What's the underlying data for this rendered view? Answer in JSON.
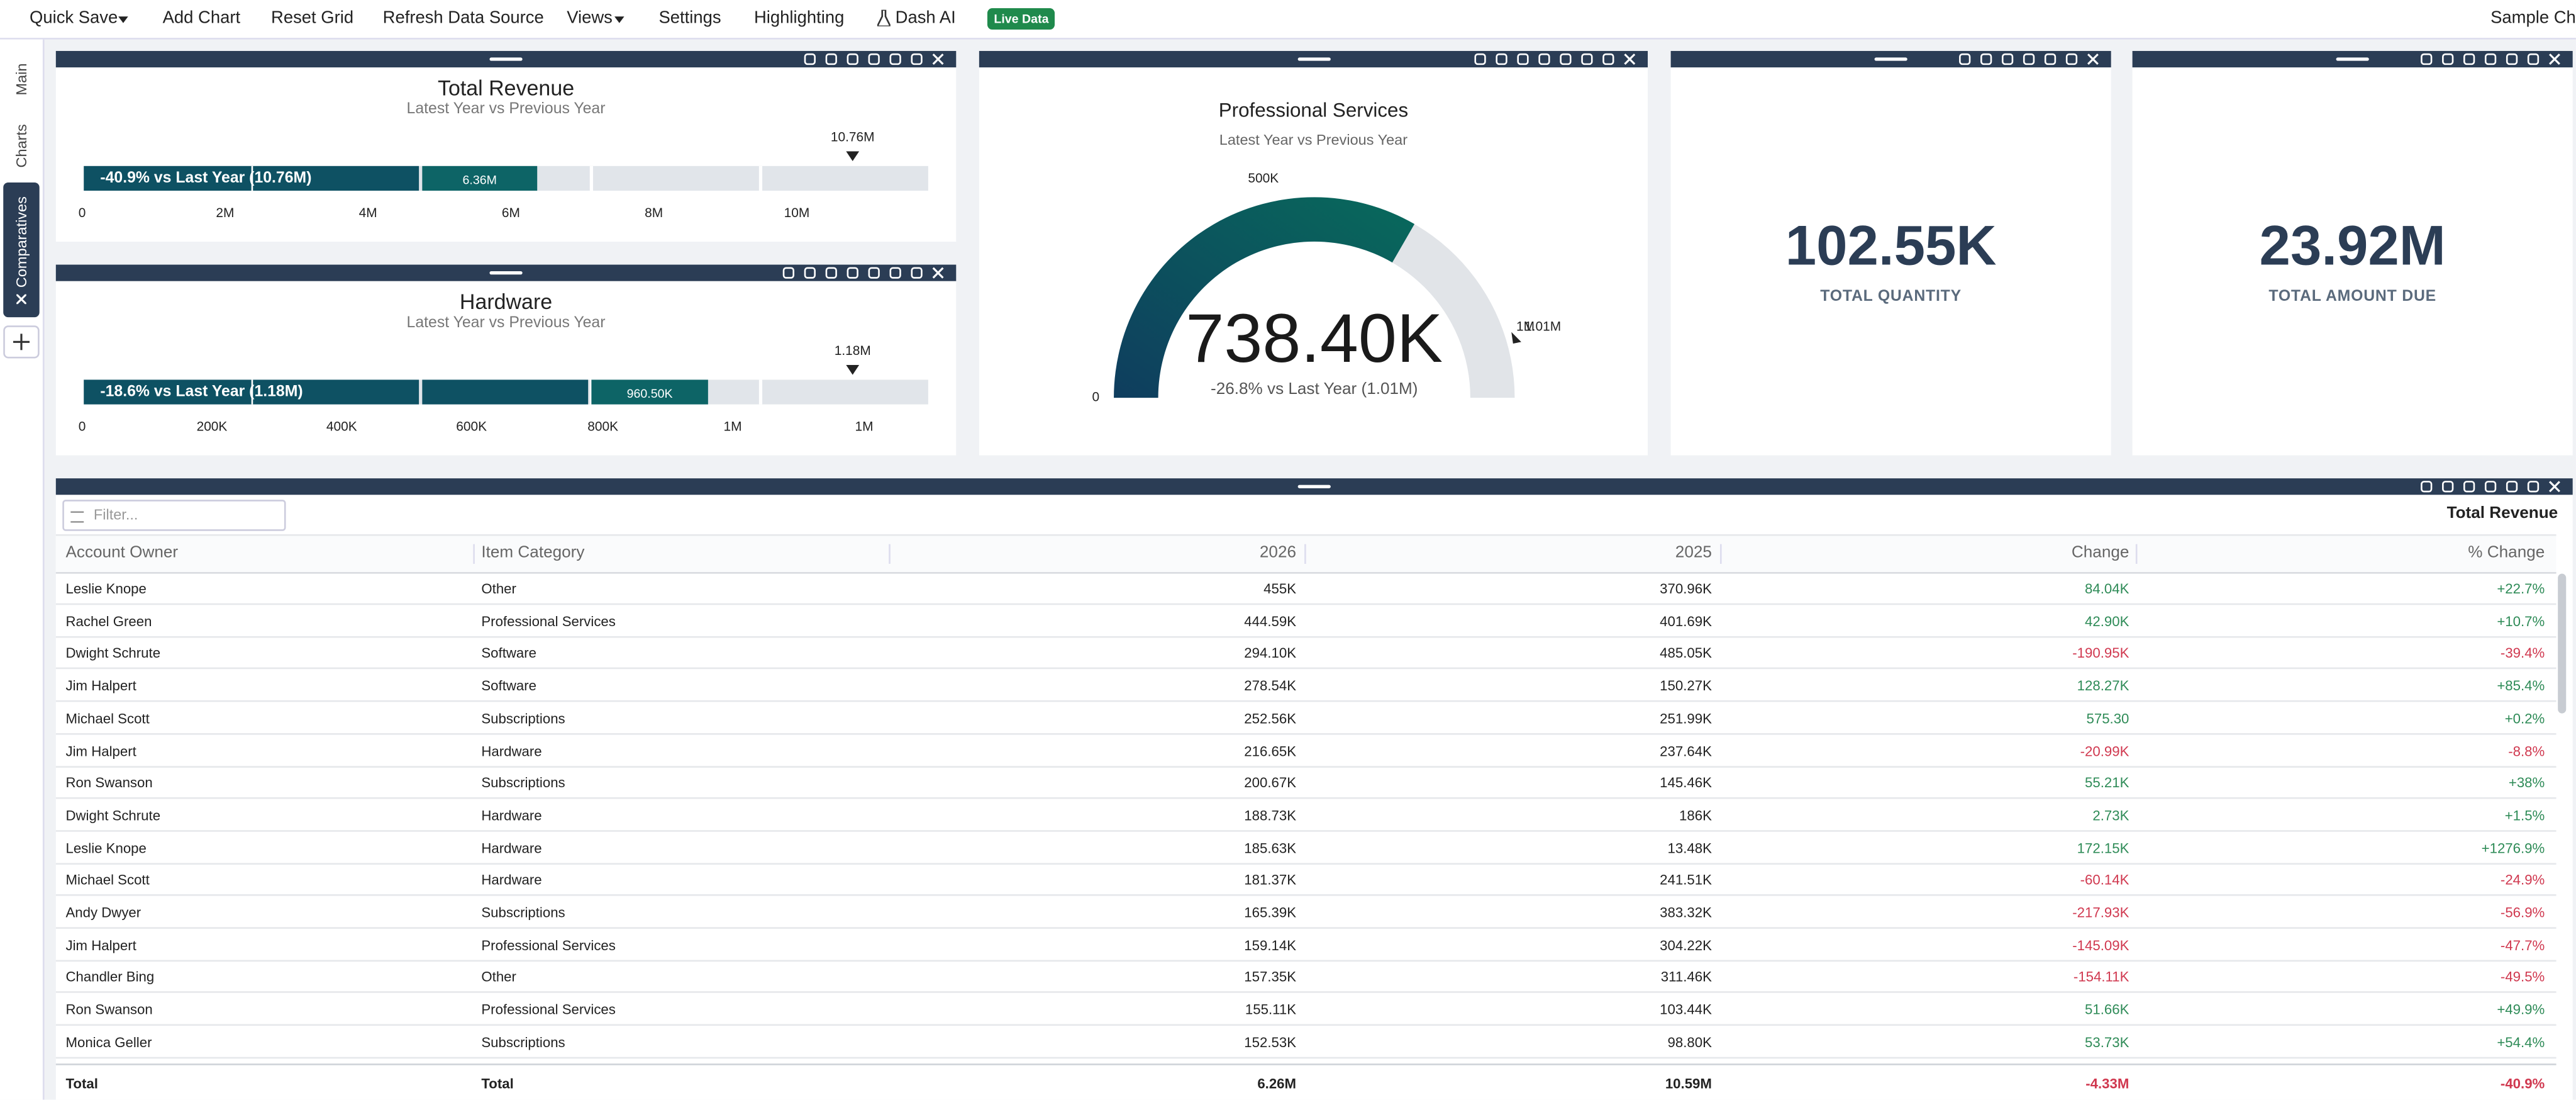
{
  "menu": {
    "items": [
      "Quick Save",
      "Add Chart",
      "Reset Grid",
      "Refresh Data Source",
      "Views",
      "Settings",
      "Highlighting",
      "Dash AI"
    ],
    "badge": "Live Data",
    "right": "Sample Cha"
  },
  "sidebar": {
    "tabs": [
      "Main",
      "Charts",
      "Comparatives"
    ]
  },
  "bullets": [
    {
      "title": "Total Revenue",
      "subtitle": "Latest Year vs Previous Year",
      "bar_label": "-40.9% vs Last Year (10.76M)",
      "segment_label": "6.36M",
      "marker_label": "10.76M",
      "ticks": [
        "0",
        "2M",
        "4M",
        "6M",
        "8M",
        "10M"
      ]
    },
    {
      "title": "Hardware",
      "subtitle": "Latest Year vs Previous Year",
      "bar_label": "-18.6% vs Last Year (1.18M)",
      "segment_label": "960.50K",
      "marker_label": "1.18M",
      "ticks": [
        "0",
        "200K",
        "400K",
        "600K",
        "800K",
        "1M",
        "1M"
      ]
    }
  ],
  "gauge": {
    "title": "Professional Services",
    "subtitle": "Latest Year vs Previous Year",
    "mid_label": "500K",
    "min_label": "0",
    "max_label": "1M",
    "marker_label": "1.01M",
    "value": "738.40K",
    "comparison": "-26.8% vs Last Year (1.01M)"
  },
  "kpis": [
    {
      "value": "102.55K",
      "label": "TOTAL QUANTITY"
    },
    {
      "value": "23.92M",
      "label": "TOTAL AMOUNT DUE"
    }
  ],
  "table": {
    "filter": "Filter...",
    "title": "Total Revenue",
    "columns": [
      "Account Owner",
      "Item Category",
      "2026",
      "2025",
      "Change",
      "% Change"
    ],
    "rows": [
      [
        "Leslie Knope",
        "Other",
        "455K",
        "370.96K",
        "84.04K",
        "+22.7%"
      ],
      [
        "Rachel Green",
        "Professional Services",
        "444.59K",
        "401.69K",
        "42.90K",
        "+10.7%"
      ],
      [
        "Dwight Schrute",
        "Software",
        "294.10K",
        "485.05K",
        "-190.95K",
        "-39.4%"
      ],
      [
        "Jim Halpert",
        "Software",
        "278.54K",
        "150.27K",
        "128.27K",
        "+85.4%"
      ],
      [
        "Michael Scott",
        "Subscriptions",
        "252.56K",
        "251.99K",
        "575.30",
        "+0.2%"
      ],
      [
        "Jim Halpert",
        "Hardware",
        "216.65K",
        "237.64K",
        "-20.99K",
        "-8.8%"
      ],
      [
        "Ron Swanson",
        "Subscriptions",
        "200.67K",
        "145.46K",
        "55.21K",
        "+38%"
      ],
      [
        "Dwight Schrute",
        "Hardware",
        "188.73K",
        "186K",
        "2.73K",
        "+1.5%"
      ],
      [
        "Leslie Knope",
        "Hardware",
        "185.63K",
        "13.48K",
        "172.15K",
        "+1276.9%"
      ],
      [
        "Michael Scott",
        "Hardware",
        "181.37K",
        "241.51K",
        "-60.14K",
        "-24.9%"
      ],
      [
        "Andy Dwyer",
        "Subscriptions",
        "165.39K",
        "383.32K",
        "-217.93K",
        "-56.9%"
      ],
      [
        "Jim Halpert",
        "Professional Services",
        "159.14K",
        "304.22K",
        "-145.09K",
        "-47.7%"
      ],
      [
        "Chandler Bing",
        "Other",
        "157.35K",
        "311.46K",
        "-154.11K",
        "-49.5%"
      ],
      [
        "Ron Swanson",
        "Professional Services",
        "155.11K",
        "103.44K",
        "51.66K",
        "+49.9%"
      ],
      [
        "Monica Geller",
        "Subscriptions",
        "152.53K",
        "98.80K",
        "53.73K",
        "+54.4%"
      ]
    ],
    "total": [
      "Total",
      "Total",
      "6.26M",
      "10.59M",
      "-4.33M",
      "-40.9%"
    ]
  }
}
